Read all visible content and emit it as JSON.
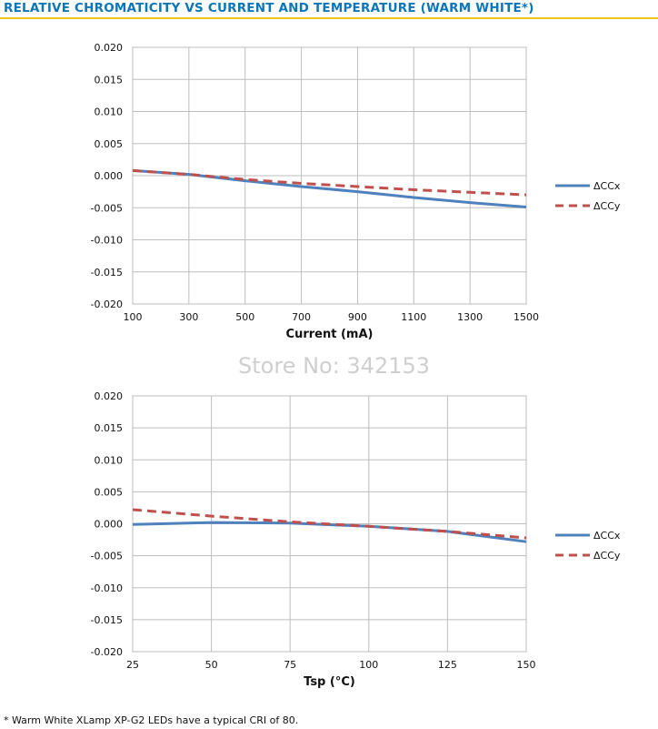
{
  "page": {
    "title": "RELATIVE CHROMATICITY VS CURRENT AND TEMPERATURE (WARM WHITE*)",
    "watermark": "Store No: 342153",
    "footnote": "* Warm White XLamp XP-G2 LEDs have a typical CRI of 80.",
    "colors": {
      "title": "#0b76b8",
      "rule": "#f0c419",
      "series_x": "#4f81bd",
      "series_y": "#c0504d"
    }
  },
  "chart_data": [
    {
      "type": "line",
      "title": "",
      "xlabel": "Current (mA)",
      "ylabel": "",
      "xlim": [
        100,
        1500
      ],
      "ylim": [
        -0.02,
        0.02
      ],
      "xticks": [
        100,
        300,
        500,
        700,
        900,
        1100,
        1300,
        1500
      ],
      "yticks": [
        "0.020",
        "0.015",
        "0.010",
        "0.005",
        "0.000",
        "-0.005",
        "-0.010",
        "-0.015",
        "-0.020"
      ],
      "grid": true,
      "legend": "right",
      "series": [
        {
          "name": "ΔCCx",
          "style": "solid",
          "color": "#4f81bd",
          "x": [
            100,
            300,
            500,
            700,
            900,
            1100,
            1300,
            1500
          ],
          "y": [
            0.0008,
            0.0002,
            -0.0008,
            -0.0017,
            -0.0025,
            -0.0034,
            -0.0042,
            -0.0049
          ]
        },
        {
          "name": "ΔCCy",
          "style": "dashed",
          "color": "#c0504d",
          "x": [
            100,
            300,
            500,
            700,
            900,
            1100,
            1300,
            1500
          ],
          "y": [
            0.0008,
            0.0002,
            -0.0006,
            -0.0012,
            -0.0017,
            -0.0022,
            -0.0026,
            -0.003
          ]
        }
      ]
    },
    {
      "type": "line",
      "title": "",
      "xlabel": "Tsp (°C)",
      "ylabel": "",
      "xlim": [
        25,
        150
      ],
      "ylim": [
        -0.02,
        0.02
      ],
      "xticks": [
        25,
        50,
        75,
        100,
        125,
        150
      ],
      "yticks": [
        "0.020",
        "0.015",
        "0.010",
        "0.005",
        "0.000",
        "-0.005",
        "-0.010",
        "-0.015",
        "-0.020"
      ],
      "grid": true,
      "legend": "right",
      "series": [
        {
          "name": "ΔCCx",
          "style": "solid",
          "color": "#4f81bd",
          "x": [
            25,
            50,
            75,
            100,
            125,
            150
          ],
          "y": [
            -0.0001,
            0.0002,
            0.0001,
            -0.0004,
            -0.0012,
            -0.0028
          ]
        },
        {
          "name": "ΔCCy",
          "style": "dashed",
          "color": "#c0504d",
          "x": [
            25,
            50,
            75,
            100,
            125,
            150
          ],
          "y": [
            0.0022,
            0.0012,
            0.0003,
            -0.0004,
            -0.0012,
            -0.0022
          ]
        }
      ]
    }
  ]
}
